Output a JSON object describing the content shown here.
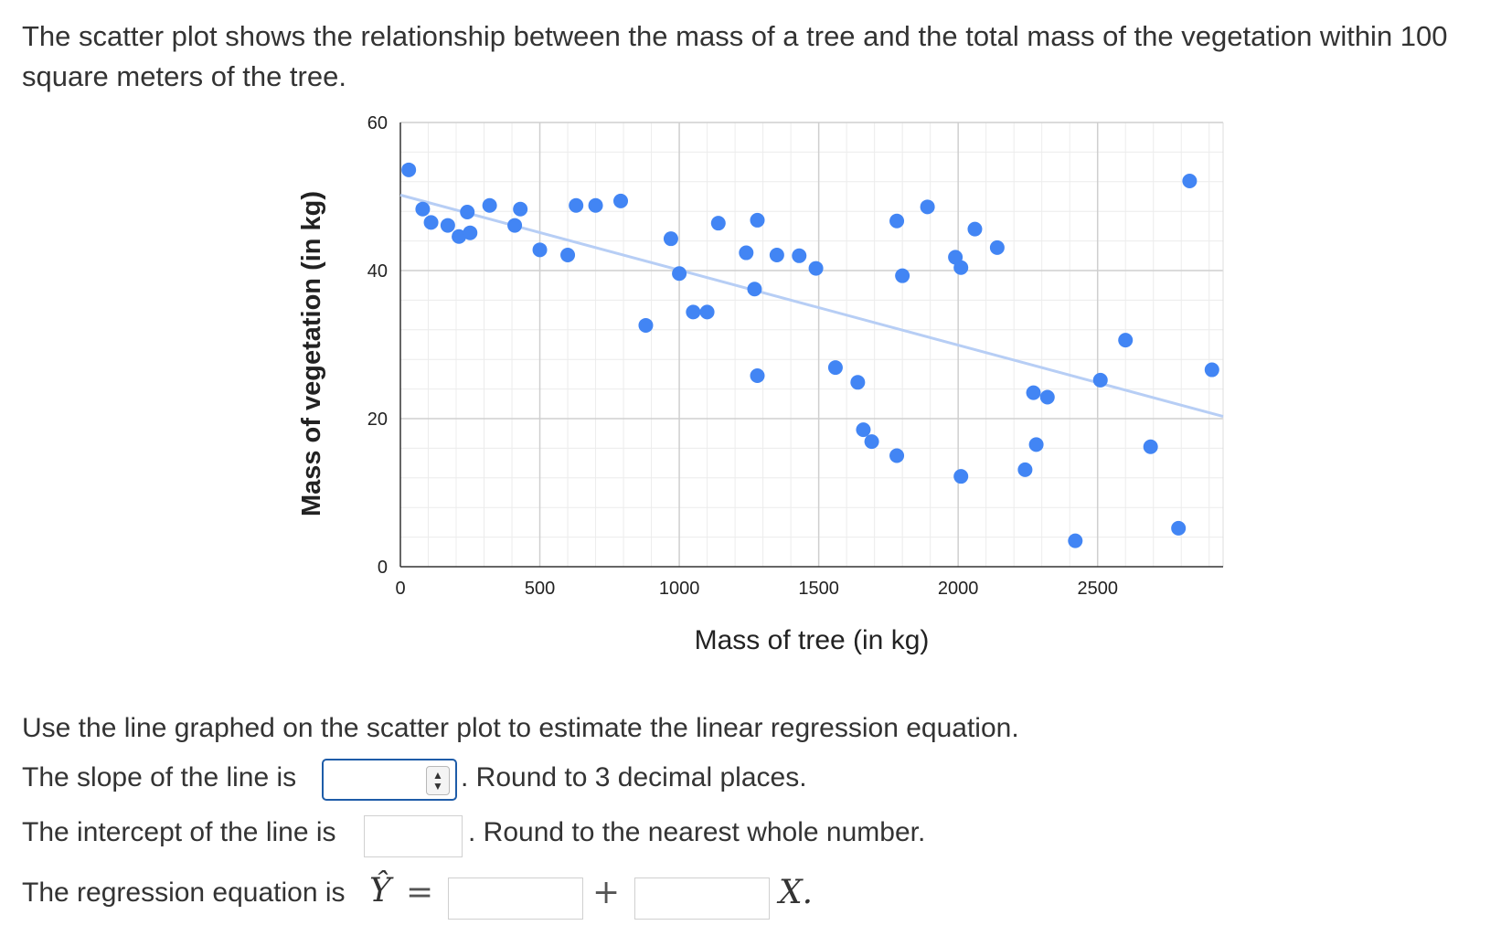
{
  "question": {
    "intro": "The scatter plot shows the relationship between the mass of a tree and the total mass of the vegetation within 100 square meters of the tree.",
    "instruction": "Use the line graphed on the scatter plot to estimate the linear regression equation.",
    "slope_prefix": "The slope of the line is",
    "slope_suffix": ". Round to 3 decimal places.",
    "slope_value": "",
    "intercept_prefix": "The intercept of the line is",
    "intercept_suffix": ". Round to the nearest whole number.",
    "intercept_value": "",
    "equation_prefix": "The regression equation is",
    "equation_lhs": "Ŷ",
    "equation_equals": "=",
    "equation_plus": "+",
    "equation_var": "X.",
    "equation_box1_value": "",
    "equation_box2_value": ""
  },
  "chart_data": {
    "type": "scatter",
    "title": "",
    "xlabel": "Mass of tree (in kg)",
    "ylabel": "Mass of vegetation (in kg)",
    "xlim": [
      0,
      2950
    ],
    "ylim": [
      0,
      60
    ],
    "xticks": [
      0,
      500,
      1000,
      1500,
      2000,
      2500
    ],
    "yticks": [
      0,
      20,
      40,
      60
    ],
    "grid": true,
    "point_color": "#4285F4",
    "trendline_color": "#B7CEF5",
    "trendline": {
      "x": [
        0,
        2950
      ],
      "y": [
        50.2,
        20.3
      ]
    },
    "points": [
      [
        30,
        53.6
      ],
      [
        80,
        48.3
      ],
      [
        110,
        46.5
      ],
      [
        170,
        46.1
      ],
      [
        210,
        44.6
      ],
      [
        240,
        47.9
      ],
      [
        250,
        45.1
      ],
      [
        320,
        48.8
      ],
      [
        410,
        46.1
      ],
      [
        430,
        48.3
      ],
      [
        500,
        42.8
      ],
      [
        600,
        42.1
      ],
      [
        630,
        48.8
      ],
      [
        700,
        48.8
      ],
      [
        790,
        49.4
      ],
      [
        880,
        32.6
      ],
      [
        970,
        44.3
      ],
      [
        1000,
        39.6
      ],
      [
        1050,
        34.4
      ],
      [
        1100,
        34.4
      ],
      [
        1140,
        46.4
      ],
      [
        1240,
        42.4
      ],
      [
        1270,
        37.5
      ],
      [
        1280,
        46.8
      ],
      [
        1280,
        25.8
      ],
      [
        1350,
        42.1
      ],
      [
        1430,
        42.0
      ],
      [
        1490,
        40.3
      ],
      [
        1560,
        26.9
      ],
      [
        1640,
        24.9
      ],
      [
        1660,
        18.5
      ],
      [
        1690,
        16.9
      ],
      [
        1780,
        46.7
      ],
      [
        1780,
        15.0
      ],
      [
        1800,
        39.3
      ],
      [
        1890,
        48.6
      ],
      [
        1990,
        41.8
      ],
      [
        2010,
        40.4
      ],
      [
        2010,
        12.2
      ],
      [
        2060,
        45.6
      ],
      [
        2140,
        43.1
      ],
      [
        2240,
        13.1
      ],
      [
        2270,
        23.5
      ],
      [
        2280,
        16.5
      ],
      [
        2320,
        22.9
      ],
      [
        2420,
        3.5
      ],
      [
        2510,
        25.2
      ],
      [
        2600,
        30.6
      ],
      [
        2690,
        16.2
      ],
      [
        2790,
        5.2
      ],
      [
        2830,
        52.1
      ],
      [
        2910,
        26.6
      ]
    ]
  }
}
